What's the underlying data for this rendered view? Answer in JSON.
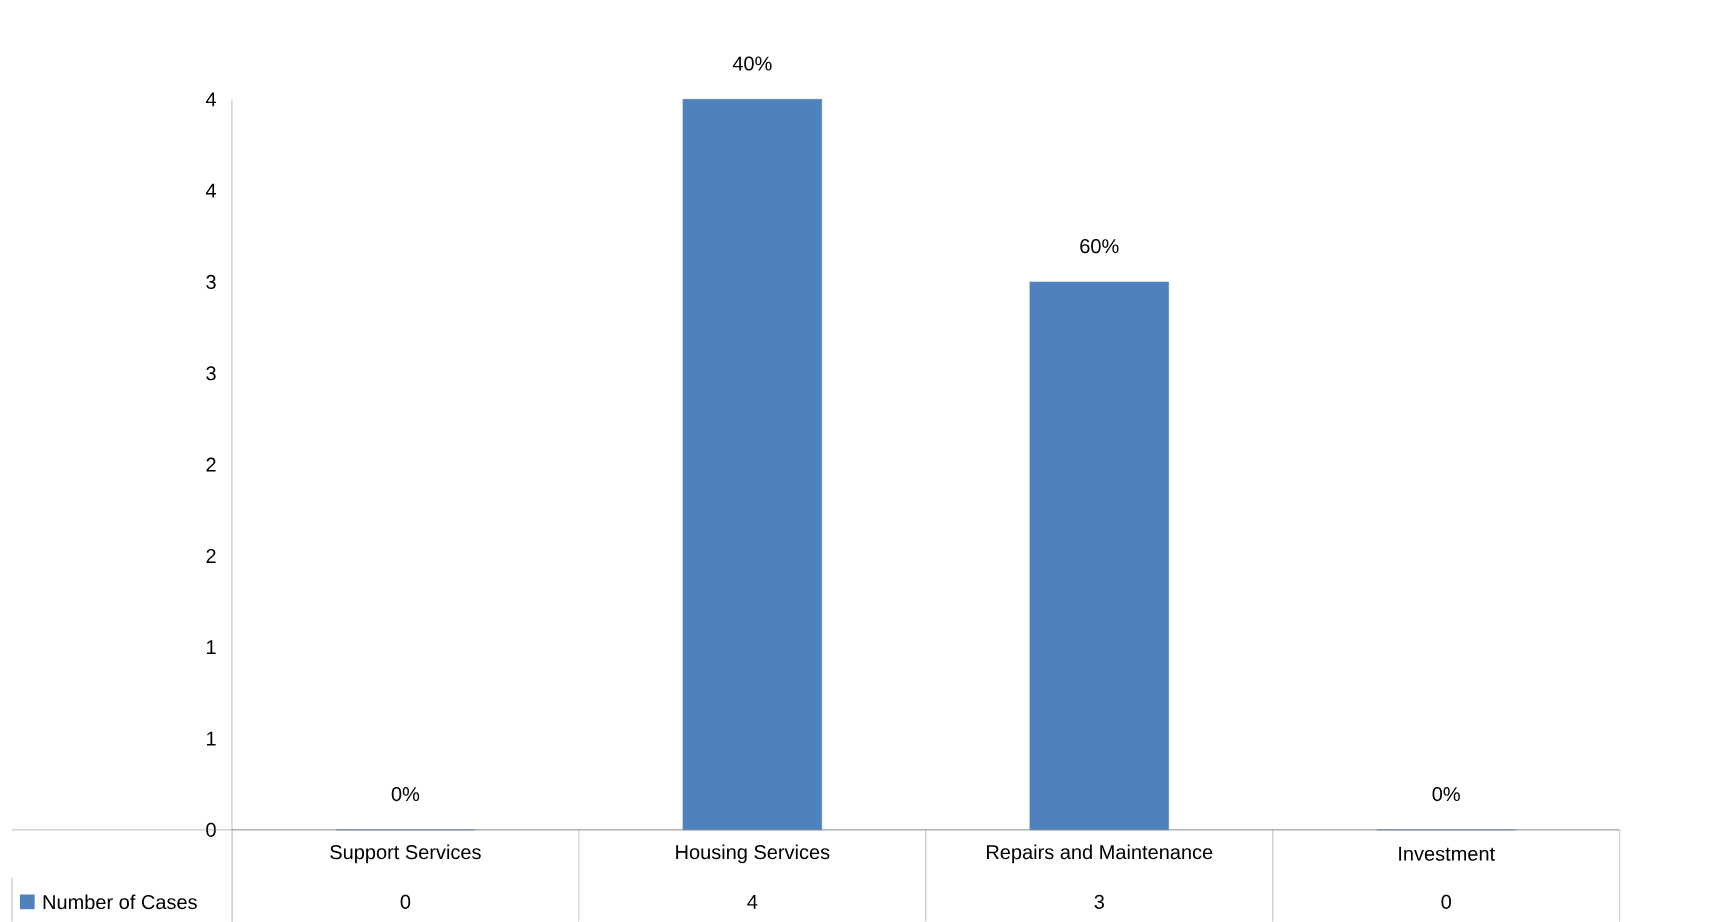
{
  "chart_data": {
    "type": "bar",
    "categories": [
      "Support Services",
      "Housing Services",
      "Repairs and Maintenance",
      "Investment"
    ],
    "series": [
      {
        "name": "Number of Cases",
        "color": "#4f81bd",
        "values": [
          0,
          4,
          3,
          0
        ],
        "value_labels": [
          "0",
          "4",
          "3",
          "0"
        ]
      }
    ],
    "annotations": [
      {
        "text": "0%",
        "x": "Support Services",
        "y": 0
      },
      {
        "text": "40%",
        "x": "Housing Services",
        "y": 4
      },
      {
        "text": "60%",
        "x": "Repairs and Maintenance",
        "y": 3
      },
      {
        "text": "0%",
        "x": "Investment",
        "y": 0
      }
    ],
    "ylim": [
      0,
      4
    ],
    "yticks": [
      0,
      {
        "value": 0.5,
        "label": "1"
      },
      {
        "value": 1,
        "label": "1"
      },
      {
        "value": 1.5,
        "label": "2"
      },
      {
        "value": 2,
        "label": "2"
      },
      {
        "value": 2.5,
        "label": "3"
      },
      {
        "value": 3,
        "label": "3"
      },
      {
        "value": 3.5,
        "label": "4"
      },
      {
        "value": 4,
        "label": "4"
      }
    ],
    "legend": "bottom",
    "grid": false
  }
}
